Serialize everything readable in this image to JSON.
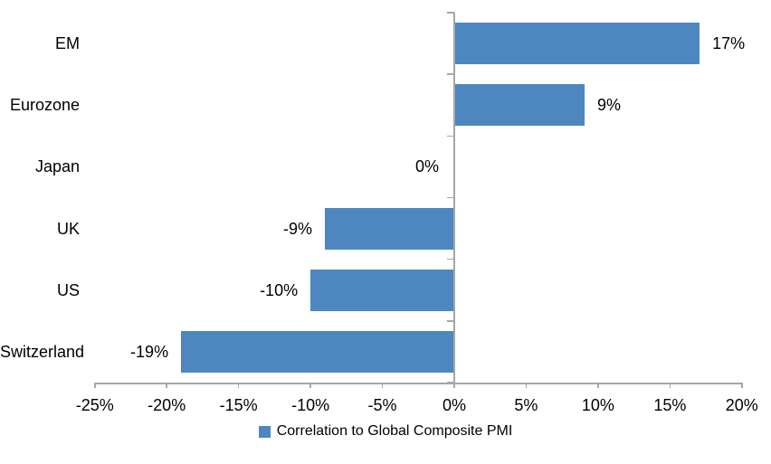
{
  "chart_data": {
    "type": "bar",
    "orientation": "horizontal",
    "title": "",
    "xlabel": "",
    "ylabel": "",
    "categories": [
      "EM",
      "Eurozone",
      "Japan",
      "UK",
      "US",
      "Switzerland"
    ],
    "series": [
      {
        "name": "Correlation to Global Composite PMI",
        "values": [
          17,
          9,
          0,
          -9,
          -10,
          -19
        ],
        "data_labels": [
          "17%",
          "9%",
          "0%",
          "-9%",
          "-10%",
          "-19%"
        ]
      }
    ],
    "xlim": [
      -25,
      20
    ],
    "x_ticks": [
      -25,
      -20,
      -15,
      -10,
      -5,
      0,
      5,
      10,
      15,
      20
    ],
    "x_tick_labels": [
      "-25%",
      "-20%",
      "-15%",
      "-10%",
      "-5%",
      "0%",
      "5%",
      "10%",
      "15%",
      "20%"
    ],
    "grid": false,
    "legend_position": "bottom-center",
    "legend": [
      {
        "label": "Correlation to Global Composite PMI",
        "color": "#4E87C0"
      }
    ],
    "colors": {
      "bar": "#4E87C0",
      "axis": "#A6A6A6",
      "text": "#000000",
      "background": "#FFFFFF"
    }
  }
}
